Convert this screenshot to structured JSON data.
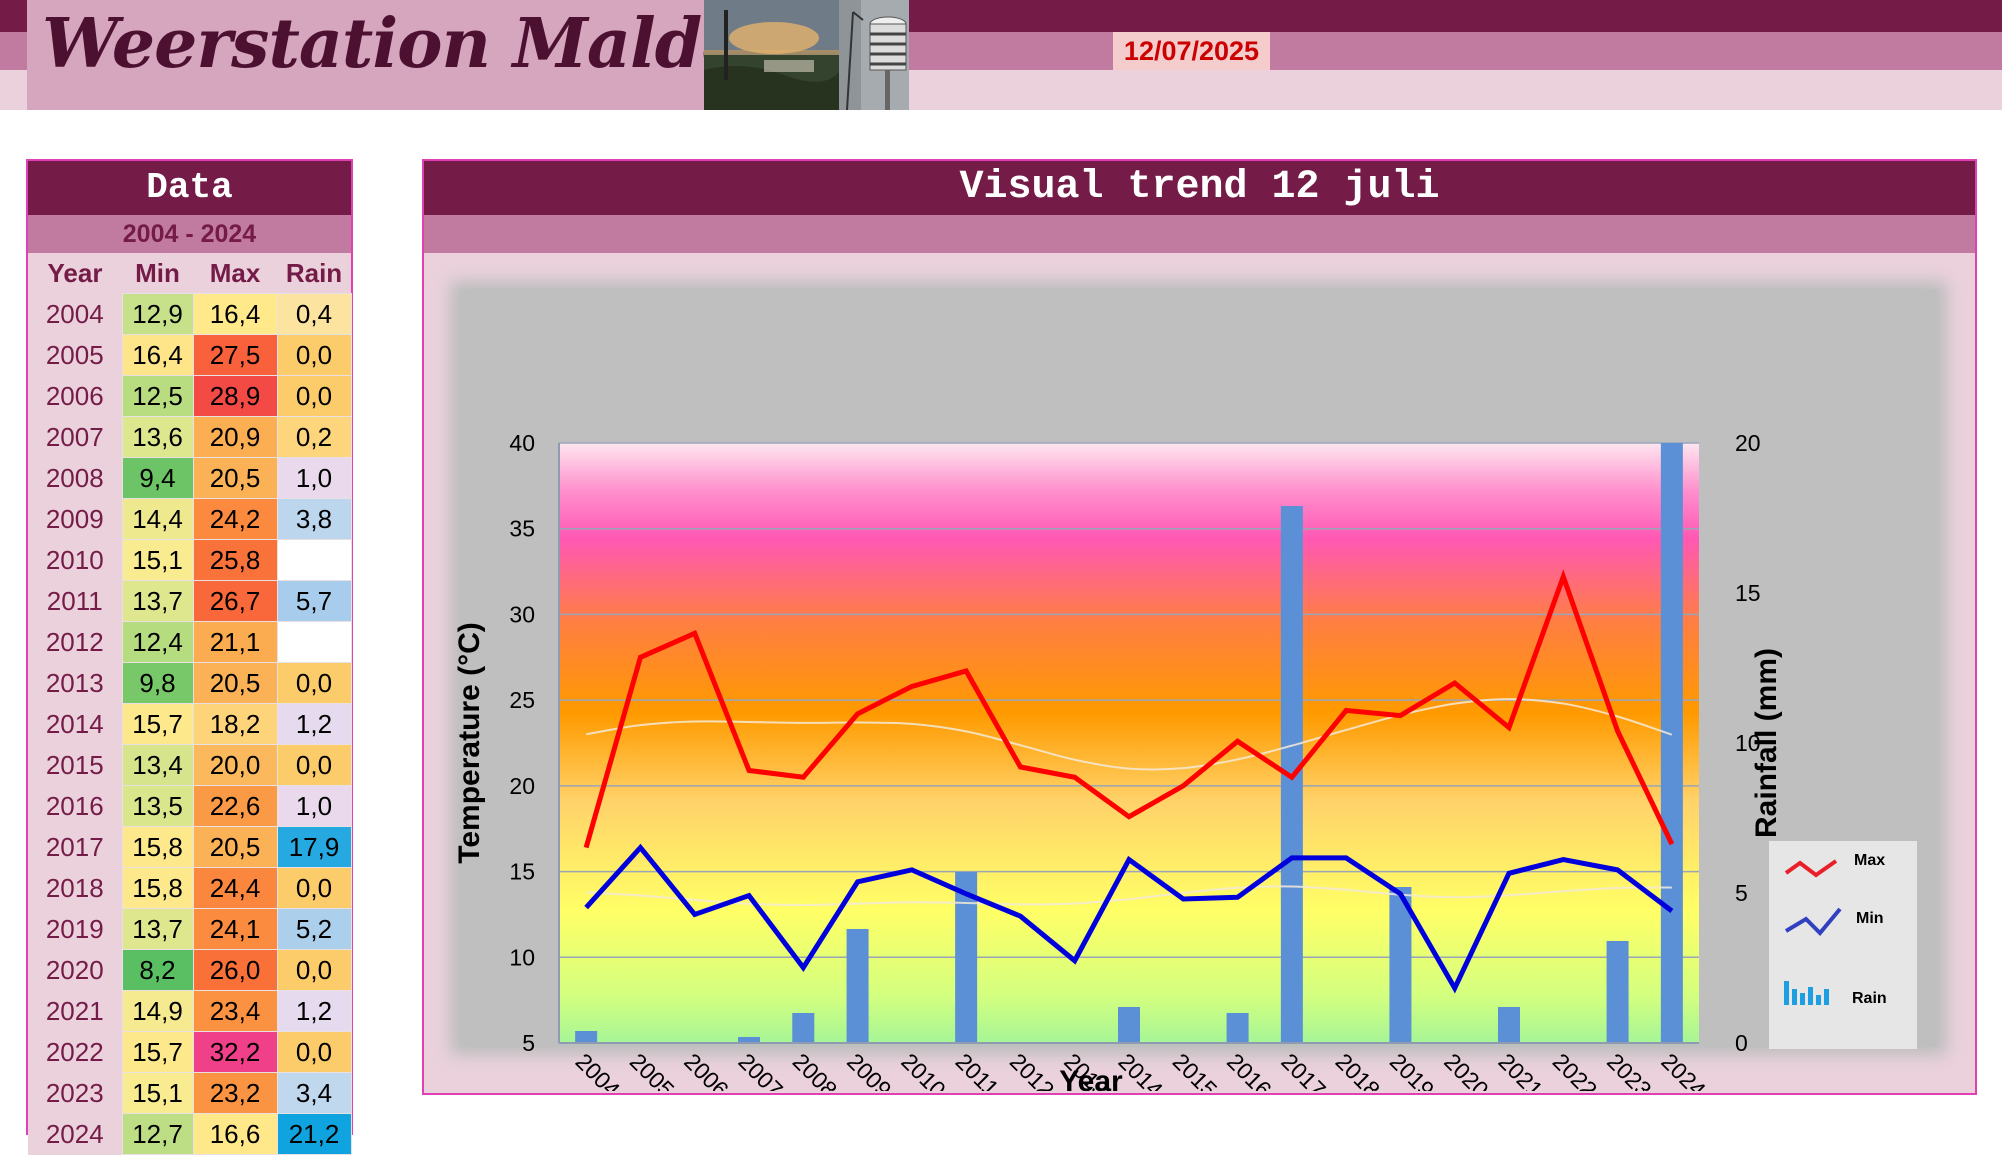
{
  "header": {
    "title": "Weerstation Malderen",
    "date": "12/07/2025"
  },
  "data_panel": {
    "title": "Data",
    "range": "2004 - 2024",
    "columns": [
      "Year",
      "Min",
      "Max",
      "Rain"
    ],
    "rows": [
      {
        "year": "2004",
        "min": "12,9",
        "max": "16,4",
        "rain": "0,4",
        "min_color": "#c7e08a",
        "max_color": "#ffe98a",
        "rain_color": "#fde3a0"
      },
      {
        "year": "2005",
        "min": "16,4",
        "max": "27,5",
        "rain": "0,0",
        "min_color": "#fee58a",
        "max_color": "#f8613b",
        "rain_color": "#fdcc6a"
      },
      {
        "year": "2006",
        "min": "12,5",
        "max": "28,9",
        "rain": "0,0",
        "min_color": "#b8dc80",
        "max_color": "#f44a45",
        "rain_color": "#fdcc6a"
      },
      {
        "year": "2007",
        "min": "13,6",
        "max": "20,9",
        "rain": "0,2",
        "min_color": "#dde78e",
        "max_color": "#fbae52",
        "rain_color": "#fdd57c"
      },
      {
        "year": "2008",
        "min": "9,4",
        "max": "20,5",
        "rain": "1,0",
        "min_color": "#6cc466",
        "max_color": "#fbb256",
        "rain_color": "#ead9ec"
      },
      {
        "year": "2009",
        "min": "14,4",
        "max": "24,2",
        "rain": "3,8",
        "min_color": "#eee98e",
        "max_color": "#fb8a3e",
        "rain_color": "#bcd6ee"
      },
      {
        "year": "2010",
        "min": "15,1",
        "max": "25,8",
        "rain": "",
        "min_color": "#f9eb90",
        "max_color": "#f9723a",
        "rain_color": "#ffffff"
      },
      {
        "year": "2011",
        "min": "13,7",
        "max": "26,7",
        "rain": "5,7",
        "min_color": "#dfe78e",
        "max_color": "#f8683a",
        "rain_color": "#a8cdec"
      },
      {
        "year": "2012",
        "min": "12,4",
        "max": "21,1",
        "rain": "",
        "min_color": "#b6dc80",
        "max_color": "#fbab50",
        "rain_color": "#ffffff"
      },
      {
        "year": "2013",
        "min": "9,8",
        "max": "20,5",
        "rain": "0,0",
        "min_color": "#78c86a",
        "max_color": "#fbb256",
        "rain_color": "#fdcc6a"
      },
      {
        "year": "2014",
        "min": "15,7",
        "max": "18,2",
        "rain": "1,2",
        "min_color": "#fde98c",
        "max_color": "#fdd47a",
        "rain_color": "#e6daee"
      },
      {
        "year": "2015",
        "min": "13,4",
        "max": "20,0",
        "rain": "0,0",
        "min_color": "#d6e58c",
        "max_color": "#fbb85c",
        "rain_color": "#fdcc6a"
      },
      {
        "year": "2016",
        "min": "13,5",
        "max": "22,6",
        "rain": "1,0",
        "min_color": "#d9e68c",
        "max_color": "#fb9a46",
        "rain_color": "#ead9ec"
      },
      {
        "year": "2017",
        "min": "15,8",
        "max": "20,5",
        "rain": "17,9",
        "min_color": "#fde98c",
        "max_color": "#fbb256",
        "rain_color": "#25a9e0"
      },
      {
        "year": "2018",
        "min": "15,8",
        "max": "24,4",
        "rain": "0,0",
        "min_color": "#fde98c",
        "max_color": "#fb873e",
        "rain_color": "#fdcc6a"
      },
      {
        "year": "2019",
        "min": "13,7",
        "max": "24,1",
        "rain": "5,2",
        "min_color": "#dfe78e",
        "max_color": "#fb8b3e",
        "rain_color": "#acd0ec"
      },
      {
        "year": "2020",
        "min": "8,2",
        "max": "26,0",
        "rain": "0,0",
        "min_color": "#5abe63",
        "max_color": "#f97039",
        "rain_color": "#fdcc6a"
      },
      {
        "year": "2021",
        "min": "14,9",
        "max": "23,4",
        "rain": "1,2",
        "min_color": "#f6ea90",
        "max_color": "#fb9242",
        "rain_color": "#e6daee"
      },
      {
        "year": "2022",
        "min": "15,7",
        "max": "32,2",
        "rain": "0,0",
        "min_color": "#fde98c",
        "max_color": "#f0408a",
        "rain_color": "#fdcc6a"
      },
      {
        "year": "2023",
        "min": "15,1",
        "max": "23,2",
        "rain": "3,4",
        "min_color": "#f9eb90",
        "max_color": "#fb9442",
        "rain_color": "#c0d8ee"
      },
      {
        "year": "2024",
        "min": "12,7",
        "max": "16,6",
        "rain": "21,2",
        "min_color": "#bdde84",
        "max_color": "#ffe88a",
        "rain_color": "#0fa4e0"
      }
    ]
  },
  "chart_panel": {
    "title": "Visual trend 12 juli"
  },
  "chart_data": {
    "type": "line",
    "title": "Visual trend 12 juli",
    "xlabel": "Year",
    "ylabel": "Temperature (°C)",
    "y2label": "Rainfall (mm)",
    "categories": [
      "2004",
      "2005",
      "2006",
      "2007",
      "2008",
      "2009",
      "2010",
      "2011",
      "2012",
      "2013",
      "2014",
      "2015",
      "2016",
      "2017",
      "2018",
      "2019",
      "2020",
      "2021",
      "2022",
      "2023",
      "2024"
    ],
    "ylim": [
      5,
      40
    ],
    "y_ticks": [
      5,
      10,
      15,
      20,
      25,
      30,
      35,
      40
    ],
    "y2lim": [
      0,
      20
    ],
    "y2_ticks": [
      0,
      5,
      10,
      15,
      20
    ],
    "grid": true,
    "legend_position": "bottom-right",
    "series": [
      {
        "name": "Max",
        "type": "line",
        "axis": "left",
        "color": "#ff0000",
        "values": [
          16.4,
          27.5,
          28.9,
          20.9,
          20.5,
          24.2,
          25.8,
          26.7,
          21.1,
          20.5,
          18.2,
          20.0,
          22.6,
          20.5,
          24.4,
          24.1,
          26.0,
          23.4,
          32.2,
          23.2,
          16.6
        ]
      },
      {
        "name": "Min",
        "type": "line",
        "axis": "left",
        "color": "#0000dd",
        "values": [
          12.9,
          16.4,
          12.5,
          13.6,
          9.4,
          14.4,
          15.1,
          13.7,
          12.4,
          9.8,
          15.7,
          13.4,
          13.5,
          15.8,
          15.8,
          13.7,
          8.2,
          14.9,
          15.7,
          15.1,
          12.7
        ]
      },
      {
        "name": "Rain",
        "type": "bar",
        "axis": "right",
        "color": "#5b8fd6",
        "values": [
          0.4,
          0.0,
          0.0,
          0.2,
          1.0,
          3.8,
          null,
          5.7,
          null,
          0.0,
          1.2,
          0.0,
          1.0,
          17.9,
          0.0,
          5.2,
          0.0,
          1.2,
          0.0,
          3.4,
          21.2
        ]
      }
    ]
  }
}
